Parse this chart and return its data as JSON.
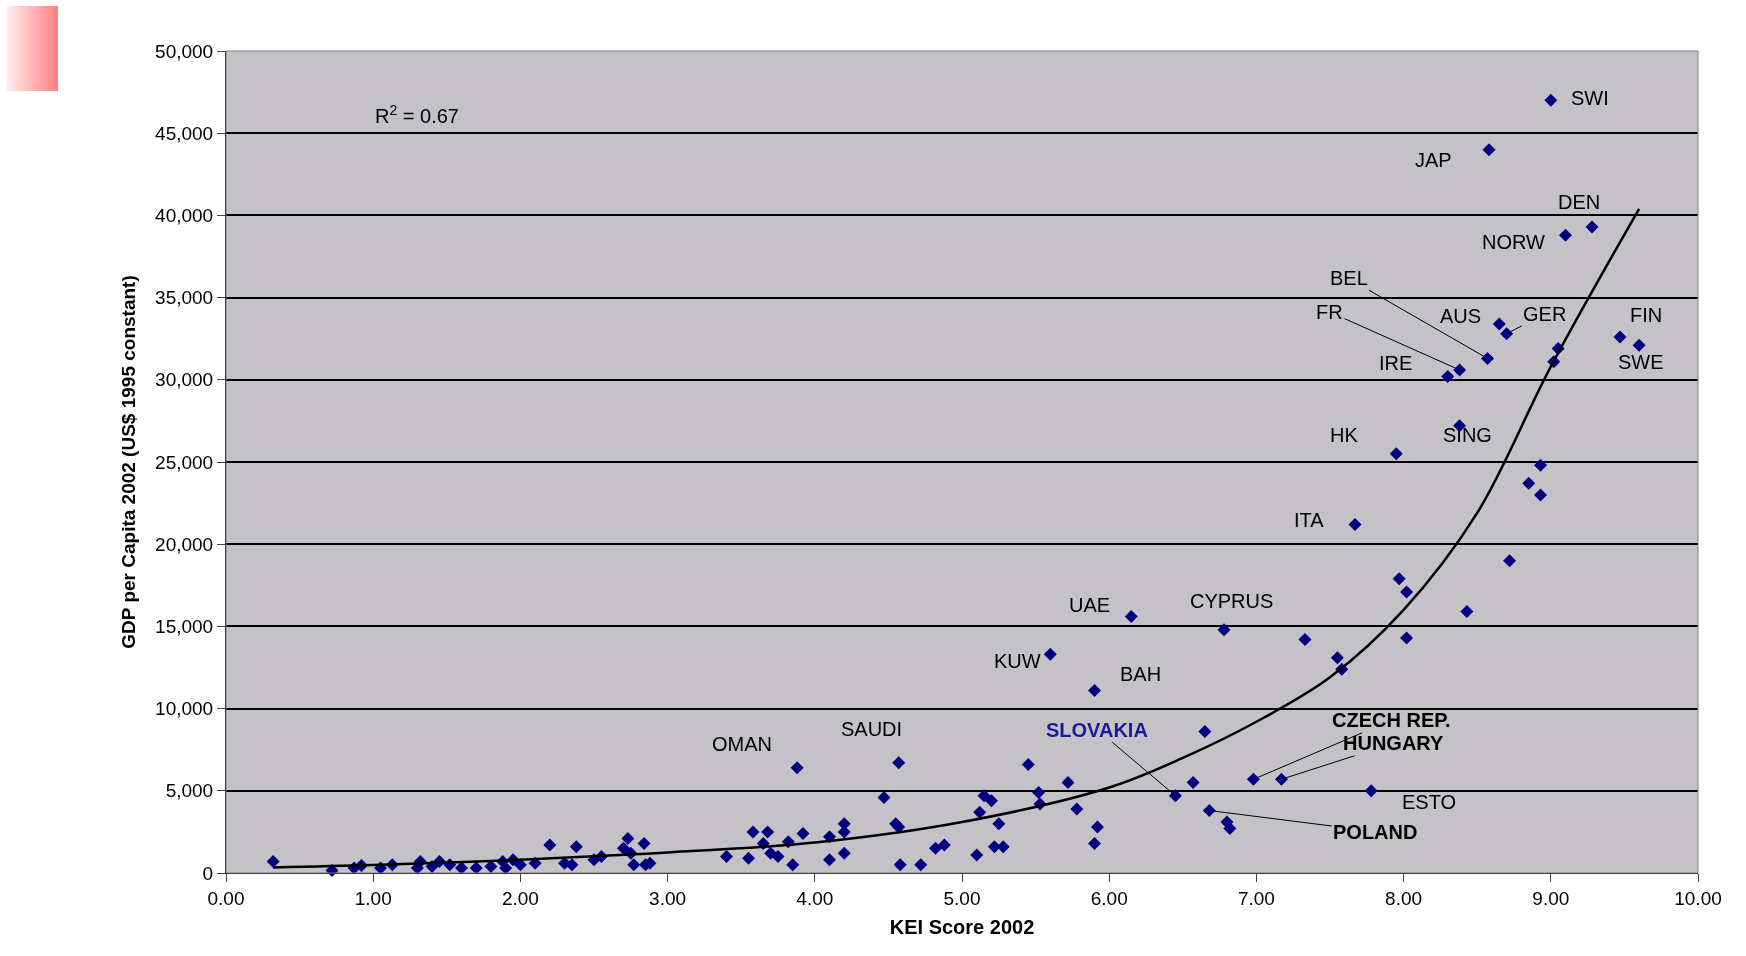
{
  "chart_data": {
    "type": "scatter",
    "xlabel": "KEI Score 2002",
    "ylabel": "GDP per Capita 2002 (US$ 1995 constant)",
    "xlim": [
      0,
      10
    ],
    "ylim": [
      0,
      50000
    ],
    "xticks": [
      {
        "value": 0,
        "label": "0.00"
      },
      {
        "value": 1,
        "label": "1.00"
      },
      {
        "value": 2,
        "label": "2.00"
      },
      {
        "value": 3,
        "label": "3.00"
      },
      {
        "value": 4,
        "label": "4.00"
      },
      {
        "value": 5,
        "label": "5.00"
      },
      {
        "value": 6,
        "label": "6.00"
      },
      {
        "value": 7,
        "label": "7.00"
      },
      {
        "value": 8,
        "label": "8.00"
      },
      {
        "value": 9,
        "label": "9.00"
      },
      {
        "value": 10,
        "label": "10.00"
      }
    ],
    "yticks": [
      0,
      {
        "value": 5000,
        "label": "5,000"
      },
      {
        "value": 10000,
        "label": "10,000"
      },
      {
        "value": 15000,
        "label": "15,000"
      },
      {
        "value": 20000,
        "label": "20,000"
      },
      {
        "value": 25000,
        "label": "25,000"
      },
      {
        "value": 30000,
        "label": "30,000"
      },
      {
        "value": 35000,
        "label": "35,000"
      },
      {
        "value": 40000,
        "label": "40,000"
      },
      {
        "value": 45000,
        "label": "45,000"
      },
      {
        "value": 50000,
        "label": "50,000"
      }
    ],
    "grid": "y",
    "marker": "diamond",
    "series": [
      {
        "color": "#000080",
        "x": [
          0.32,
          0.72,
          0.87,
          0.92,
          1.05,
          1.13,
          1.3,
          1.32,
          1.4,
          1.45,
          1.52,
          1.6,
          1.7,
          1.8,
          1.88,
          1.9,
          1.95,
          2.0,
          2.1,
          2.2,
          2.3,
          2.35,
          2.38,
          2.5,
          2.55,
          2.7,
          2.73,
          2.75,
          2.77,
          2.84,
          2.85,
          2.88,
          3.4,
          3.55,
          3.58,
          3.65,
          3.68,
          3.7,
          3.75,
          3.82,
          3.85,
          3.88,
          3.92,
          4.1,
          4.1,
          4.2,
          4.2,
          4.2,
          4.47,
          4.55,
          4.57,
          4.57,
          4.58,
          4.72,
          4.82,
          4.88,
          5.1,
          5.12,
          5.15,
          5.2,
          5.22,
          5.25,
          5.28,
          5.45,
          5.52,
          5.53,
          5.72,
          5.78,
          5.9,
          5.92,
          5.9,
          5.6,
          6.15,
          6.45,
          6.57,
          6.65,
          6.68,
          6.8,
          6.82,
          6.78,
          6.98,
          7.17,
          7.33,
          7.55,
          7.58,
          7.78,
          7.67,
          7.95,
          7.97,
          8.02,
          8.02,
          8.43,
          8.38,
          8.3,
          8.38,
          8.57,
          8.65,
          8.7,
          8.58,
          8.72,
          8.85,
          8.93,
          8.93,
          9.0,
          9.1,
          9.28,
          9.02,
          9.05,
          9.47,
          9.6
        ],
        "values": [
          700,
          150,
          300,
          450,
          300,
          500,
          300,
          700,
          400,
          700,
          500,
          300,
          300,
          400,
          700,
          300,
          800,
          500,
          600,
          1700,
          600,
          500,
          1600,
          800,
          1000,
          1500,
          2100,
          1200,
          500,
          1800,
          500,
          600,
          1000,
          900,
          2500,
          1800,
          2500,
          1200,
          1000,
          1900,
          500,
          6400,
          2400,
          800,
          2200,
          3000,
          2500,
          1200,
          4600,
          3000,
          2800,
          6700,
          500,
          500,
          1500,
          1700,
          1100,
          3700,
          4700,
          4400,
          1600,
          3000,
          1600,
          6600,
          4900,
          4200,
          5500,
          3900,
          1800,
          2800,
          11100,
          13300,
          15600,
          4700,
          5500,
          8600,
          3800,
          3100,
          2700,
          14800,
          5700,
          5700,
          14200,
          13100,
          12400,
          5000,
          21200,
          25500,
          17900,
          17100,
          14300,
          15900,
          27200,
          30200,
          30600,
          31300,
          33400,
          32800,
          44000,
          19000,
          23700,
          24800,
          23000,
          47000,
          38800,
          39300,
          31100,
          31900,
          32600,
          32100
        ]
      },
      {
        "type": "line",
        "color": "#000000",
        "line_style": "solid",
        "marker": "none",
        "x": [
          0.32,
          1,
          2,
          3,
          4,
          5,
          6,
          6.5,
          7,
          7.5,
          8,
          8.5,
          9,
          9.6
        ],
        "values": [
          340,
          480,
          800,
          1250,
          1850,
          3100,
          5200,
          7000,
          9200,
          11900,
          16000,
          21900,
          30800,
          40400
        ]
      }
    ],
    "annotations": [
      "R$^{2}$ = 0.67",
      {
        "text": "SWI",
        "x": 9.0,
        "y": 47000
      },
      {
        "text": "JAP",
        "x": 8.58,
        "y": 44000
      },
      {
        "text": "DEN",
        "x": 9.28,
        "y": 39300
      },
      {
        "text": "NORW",
        "x": 9.1,
        "y": 38800
      },
      {
        "text": "BEL",
        "x": 8.57,
        "y": 31300
      },
      {
        "text": "FR",
        "x": 8.38,
        "y": 30600
      },
      {
        "text": "AUS",
        "x": 8.65,
        "y": 33400
      },
      {
        "text": "GER",
        "x": 8.7,
        "y": 32800
      },
      {
        "text": "FIN",
        "x": 9.47,
        "y": 32600
      },
      {
        "text": "SWE",
        "x": 9.6,
        "y": 32100
      },
      {
        "text": "IRE",
        "x": 8.3,
        "y": 30200
      },
      {
        "text": "HK",
        "x": 7.95,
        "y": 25500
      },
      {
        "text": "SING",
        "x": 8.38,
        "y": 27200
      },
      {
        "text": "ITA",
        "x": 7.67,
        "y": 21200
      },
      {
        "text": "UAE",
        "x": 6.15,
        "y": 15600
      },
      {
        "text": "CYPRUS",
        "x": 6.78,
        "y": 14800
      },
      {
        "text": "KUW",
        "x": 5.6,
        "y": 13300
      },
      {
        "text": "BAH",
        "x": 5.9,
        "y": 11100
      },
      {
        "text": "OMAN",
        "x": 3.88,
        "y": 6400
      },
      {
        "text": "SAUDI",
        "x": 4.57,
        "y": 6700
      },
      {
        "text": "SLOVAKIA",
        "x": 6.45,
        "y": 4700
      },
      {
        "text": "CZECH REP.",
        "x": 6.98,
        "y": 5700
      },
      {
        "text": "HUNGARY",
        "x": 7.17,
        "y": 5700
      },
      {
        "text": "ESTO",
        "x": 7.78,
        "y": 5000
      },
      {
        "text": "POLAND",
        "x": 6.68,
        "y": 3800
      }
    ]
  }
}
